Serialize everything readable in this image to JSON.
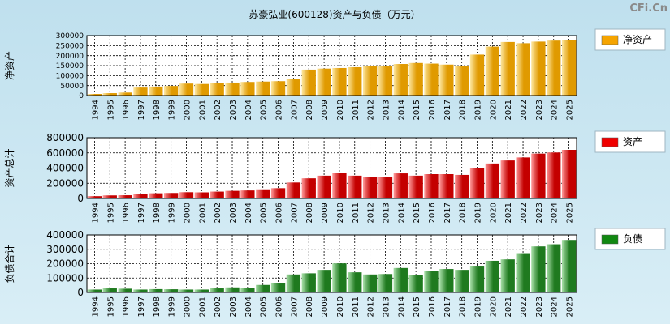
{
  "title": "苏豪弘业(600128)资产与负债（万元）",
  "watermark": "CFi.Cn",
  "years": [
    "1994",
    "1995",
    "1996",
    "1997",
    "1998",
    "1999",
    "2000",
    "2001",
    "2002",
    "2003",
    "2004",
    "2005",
    "2006",
    "2007",
    "2008",
    "2009",
    "2010",
    "2011",
    "2012",
    "2013",
    "2014",
    "2015",
    "2016",
    "2017",
    "2018",
    "2019",
    "2020",
    "2021",
    "2022",
    "2023",
    "2024",
    "2025"
  ],
  "chart_data": [
    {
      "type": "bar",
      "ylabel": "净资产",
      "legend": "净资产",
      "color_light": "#fde7a0",
      "color_dark": "#e09a00",
      "legend_color": "#f5a400",
      "ylim": [
        0,
        300000
      ],
      "yticks": [
        0,
        50000,
        100000,
        150000,
        200000,
        250000,
        300000
      ],
      "categories": [
        "1994",
        "1995",
        "1996",
        "1997",
        "1998",
        "1999",
        "2000",
        "2001",
        "2002",
        "2003",
        "2004",
        "2005",
        "2006",
        "2007",
        "2008",
        "2009",
        "2010",
        "2011",
        "2012",
        "2013",
        "2014",
        "2015",
        "2016",
        "2017",
        "2018",
        "2019",
        "2020",
        "2021",
        "2022",
        "2023",
        "2024",
        "2025"
      ],
      "values": [
        8000,
        12000,
        15000,
        40000,
        45000,
        48000,
        60000,
        58000,
        62000,
        65000,
        68000,
        70000,
        72000,
        85000,
        130000,
        135000,
        138000,
        142000,
        148000,
        150000,
        158000,
        163000,
        160000,
        155000,
        150000,
        205000,
        245000,
        268000,
        262000,
        270000,
        275000,
        278000
      ]
    },
    {
      "type": "bar",
      "ylabel": "资产总计",
      "legend": "资产",
      "color_light": "#ff9a9a",
      "color_dark": "#c40000",
      "legend_color": "#f00000",
      "ylim": [
        0,
        800000
      ],
      "yticks": [
        0,
        200000,
        400000,
        600000,
        800000
      ],
      "categories": [
        "1994",
        "1995",
        "1996",
        "1997",
        "1998",
        "1999",
        "2000",
        "2001",
        "2002",
        "2003",
        "2004",
        "2005",
        "2006",
        "2007",
        "2008",
        "2009",
        "2010",
        "2011",
        "2012",
        "2013",
        "2014",
        "2015",
        "2016",
        "2017",
        "2018",
        "2019",
        "2020",
        "2021",
        "2022",
        "2023",
        "2024",
        "2025"
      ],
      "values": [
        30000,
        40000,
        42000,
        60000,
        68000,
        72000,
        82000,
        80000,
        90000,
        100000,
        105000,
        120000,
        135000,
        210000,
        265000,
        300000,
        340000,
        300000,
        280000,
        285000,
        330000,
        300000,
        320000,
        320000,
        310000,
        395000,
        460000,
        500000,
        540000,
        590000,
        605000,
        640000
      ]
    },
    {
      "type": "bar",
      "ylabel": "负债合计",
      "legend": "负债",
      "color_light": "#a9e0a9",
      "color_dark": "#1f7a1f",
      "legend_color": "#118811",
      "ylim": [
        0,
        400000
      ],
      "yticks": [
        0,
        100000,
        200000,
        300000,
        400000
      ],
      "categories": [
        "1994",
        "1995",
        "1996",
        "1997",
        "1998",
        "1999",
        "2000",
        "2001",
        "2002",
        "2003",
        "2004",
        "2005",
        "2006",
        "2007",
        "2008",
        "2009",
        "2010",
        "2011",
        "2012",
        "2013",
        "2014",
        "2015",
        "2016",
        "2017",
        "2018",
        "2019",
        "2020",
        "2021",
        "2022",
        "2023",
        "2024",
        "2025"
      ],
      "values": [
        20000,
        28000,
        26000,
        20000,
        23000,
        22000,
        20000,
        20000,
        28000,
        35000,
        32000,
        52000,
        62000,
        125000,
        133000,
        157000,
        202000,
        140000,
        125000,
        128000,
        170000,
        123000,
        150000,
        163000,
        157000,
        180000,
        220000,
        230000,
        273000,
        320000,
        335000,
        365000
      ]
    }
  ]
}
